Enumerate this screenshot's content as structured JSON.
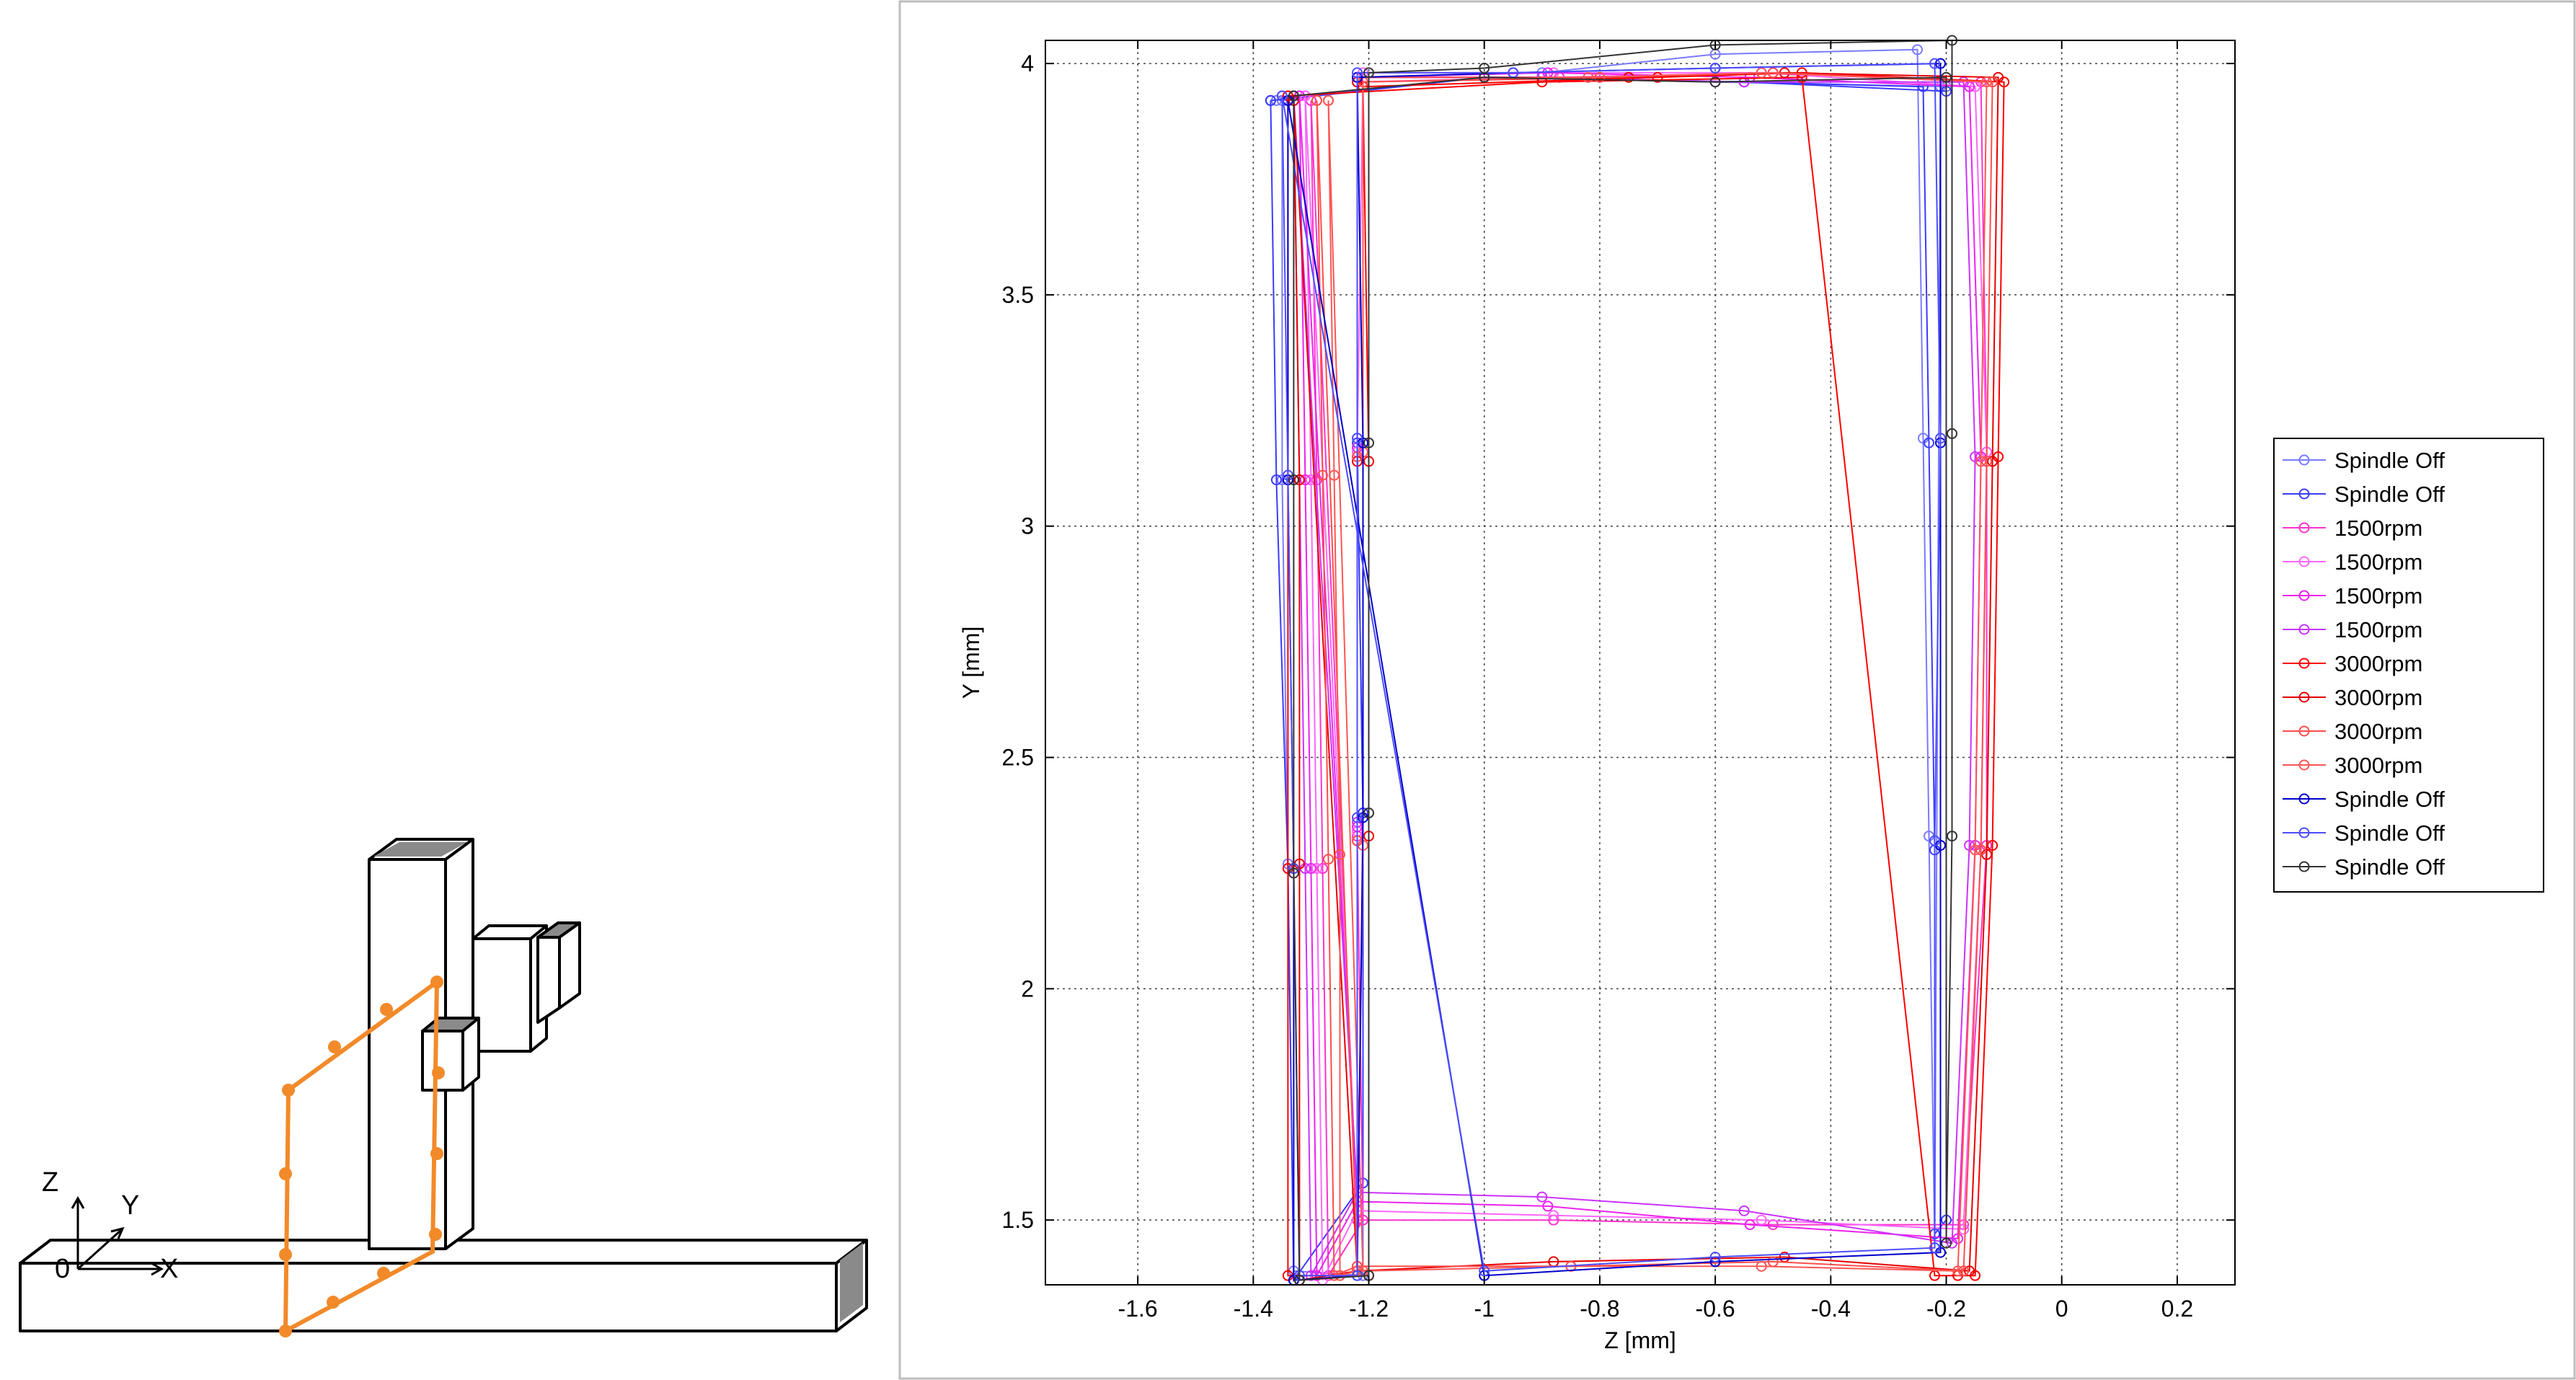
{
  "sketch": {
    "axis_z": "Z",
    "axis_y": "Y",
    "axis_x": "X",
    "origin": "0",
    "path_color": "#f28a2a"
  },
  "chart_data": {
    "type": "line",
    "title": "",
    "xlabel": "Z [mm]",
    "ylabel": "Y [mm]",
    "xlim": [
      -1.76,
      0.3
    ],
    "ylim": [
      1.36,
      4.05
    ],
    "xticks": [
      -1.6,
      -1.4,
      -1.2,
      -1,
      -0.8,
      -0.6,
      -0.4,
      -0.2,
      0,
      0.2
    ],
    "xtick_labels": [
      "-1.6",
      "-1.4",
      "-1.2",
      "-1",
      "-0.8",
      "-0.6",
      "-0.4",
      "-0.2",
      "0",
      "0.2"
    ],
    "yticks": [
      1.5,
      2,
      2.5,
      3,
      3.5,
      4
    ],
    "ytick_labels": [
      "1.5",
      "2",
      "2.5",
      "3",
      "3.5",
      "4"
    ],
    "grid": true,
    "legend_position": "right",
    "series": [
      {
        "name": "Spindle Off",
        "color": "#7a7aff",
        "x": [
          -1.35,
          -1.35,
          -1.34,
          -1.33,
          -1.21,
          -1.21,
          -1.22,
          -1.22,
          -0.9,
          -0.6,
          -0.25,
          -0.24,
          -0.23,
          -0.22,
          -0.21,
          -0.2,
          -0.6,
          -1.0,
          -1.36
        ],
        "y": [
          3.92,
          3.1,
          2.27,
          1.39,
          1.38,
          2.38,
          3.19,
          3.97,
          3.98,
          4.02,
          4.03,
          3.19,
          2.33,
          1.44,
          3.95,
          3.95,
          3.96,
          3.97,
          3.92
        ]
      },
      {
        "name": "Spindle Off",
        "color": "#3b3bff",
        "x": [
          -1.37,
          -1.36,
          -1.34,
          -1.33,
          -1.21,
          -1.21,
          -1.22,
          -1.22,
          -0.9,
          -0.55,
          -0.24,
          -0.23,
          -0.22,
          -0.22,
          -0.2,
          -0.2,
          -0.55,
          -1.0,
          -1.37
        ],
        "y": [
          3.92,
          3.1,
          2.26,
          1.37,
          1.58,
          2.38,
          3.18,
          3.97,
          3.97,
          3.96,
          3.95,
          3.18,
          2.3,
          1.47,
          1.5,
          3.94,
          3.96,
          3.97,
          3.92
        ]
      },
      {
        "name": "1500rpm",
        "color": "#ff33cc",
        "x": [
          -1.3,
          -1.29,
          -1.28,
          -1.27,
          -1.21,
          -1.22,
          -1.22,
          -1.22,
          -0.87,
          -0.5,
          -0.14,
          -0.13,
          -0.13,
          -0.17,
          -0.5,
          -0.88,
          -1.22,
          -1.3
        ],
        "y": [
          3.92,
          3.1,
          2.26,
          1.38,
          1.5,
          2.33,
          3.15,
          3.96,
          3.97,
          3.98,
          3.96,
          3.16,
          2.31,
          1.49,
          1.49,
          1.5,
          1.5,
          3.92
        ]
      },
      {
        "name": "1500rpm",
        "color": "#ff66ff",
        "x": [
          -1.31,
          -1.3,
          -1.29,
          -1.28,
          -1.22,
          -1.22,
          -1.22,
          -1.21,
          -0.88,
          -0.52,
          -0.15,
          -0.13,
          -0.14,
          -0.17,
          -0.52,
          -0.88,
          -1.22,
          -1.31
        ],
        "y": [
          3.93,
          3.1,
          2.26,
          1.37,
          1.52,
          2.34,
          3.16,
          3.98,
          3.98,
          3.98,
          3.95,
          3.16,
          2.3,
          1.48,
          1.5,
          1.51,
          1.52,
          3.93
        ]
      },
      {
        "name": "1500rpm",
        "color": "#ee22ee",
        "x": [
          -1.32,
          -1.31,
          -1.3,
          -1.29,
          -1.22,
          -1.22,
          -1.22,
          -1.22,
          -0.89,
          -0.54,
          -0.16,
          -0.14,
          -0.15,
          -0.18,
          -0.54,
          -0.89,
          -1.22,
          -1.32
        ],
        "y": [
          3.93,
          3.1,
          2.26,
          1.38,
          1.54,
          2.35,
          3.17,
          3.97,
          3.98,
          3.97,
          3.95,
          3.15,
          2.31,
          1.46,
          1.49,
          1.53,
          1.54,
          3.93
        ]
      },
      {
        "name": "1500rpm",
        "color": "#cc33ff",
        "x": [
          -1.33,
          -1.32,
          -1.31,
          -1.3,
          -1.22,
          -1.22,
          -1.22,
          -1.22,
          -0.9,
          -0.55,
          -0.17,
          -0.15,
          -0.16,
          -0.19,
          -0.55,
          -0.9,
          -1.22,
          -1.33
        ],
        "y": [
          3.93,
          3.1,
          2.26,
          1.38,
          1.56,
          2.36,
          3.17,
          3.97,
          3.97,
          3.96,
          3.96,
          3.15,
          2.31,
          1.45,
          1.52,
          1.55,
          1.56,
          3.93
        ]
      },
      {
        "name": "3000rpm",
        "color": "#ff0000",
        "x": [
          -1.34,
          -1.34,
          -1.34,
          -1.34,
          -1.2,
          -1.2,
          -1.2,
          -1.21,
          -0.7,
          -0.45,
          -0.1,
          -0.11,
          -0.12,
          -0.15,
          -0.18,
          -0.22,
          -0.45,
          -0.9,
          -1.34
        ],
        "y": [
          3.93,
          3.1,
          2.26,
          1.38,
          1.38,
          2.33,
          3.14,
          3.95,
          3.97,
          3.98,
          3.96,
          3.15,
          2.31,
          1.38,
          1.38,
          1.38,
          3.97,
          3.96,
          3.93
        ]
      },
      {
        "name": "3000rpm",
        "color": "#e60000",
        "x": [
          -1.33,
          -1.32,
          -1.32,
          -1.32,
          -1.22,
          -1.22,
          -1.22,
          -1.22,
          -0.75,
          -0.48,
          -0.11,
          -0.12,
          -0.13,
          -0.16,
          -0.48,
          -0.88,
          -1.22,
          -1.33
        ],
        "y": [
          3.92,
          3.1,
          2.27,
          1.37,
          1.39,
          2.32,
          3.14,
          3.96,
          3.97,
          3.98,
          3.97,
          3.14,
          2.29,
          1.39,
          1.42,
          1.41,
          1.39,
          3.92
        ]
      },
      {
        "name": "3000rpm",
        "color": "#ff4d4d",
        "x": [
          -1.29,
          -1.28,
          -1.27,
          -1.26,
          -1.22,
          -1.22,
          -1.22,
          -1.22,
          -0.8,
          -0.5,
          -0.12,
          -0.13,
          -0.14,
          -0.17,
          -0.5,
          -0.85,
          -1.22,
          -1.29
        ],
        "y": [
          3.92,
          3.11,
          2.28,
          1.38,
          1.4,
          2.32,
          3.15,
          3.97,
          3.97,
          3.98,
          3.96,
          3.14,
          2.3,
          1.39,
          1.41,
          1.4,
          1.4,
          3.92
        ]
      },
      {
        "name": "3000rpm",
        "color": "#ff5555",
        "x": [
          -1.27,
          -1.26,
          -1.25,
          -1.25,
          -1.22,
          -1.21,
          -1.21,
          -1.21,
          -0.82,
          -0.52,
          -0.13,
          -0.14,
          -0.15,
          -0.18,
          -0.52,
          -0.85,
          -1.21,
          -1.27
        ],
        "y": [
          3.92,
          3.11,
          2.29,
          1.38,
          1.39,
          2.31,
          3.16,
          3.96,
          3.97,
          3.98,
          3.96,
          3.14,
          2.3,
          1.39,
          1.4,
          1.4,
          1.39,
          3.92
        ]
      },
      {
        "name": "Spindle Off",
        "color": "#0000cc",
        "x": [
          -1.34,
          -1.34,
          -1.33,
          -1.33,
          -1.22,
          -1.21,
          -1.21,
          -1.22,
          -0.95,
          -0.6,
          -0.21,
          -0.21,
          -0.21,
          -0.21,
          -0.6,
          -1.0,
          -1.34
        ],
        "y": [
          3.92,
          3.1,
          2.26,
          1.37,
          1.38,
          2.37,
          3.18,
          3.97,
          3.98,
          3.99,
          4.0,
          3.18,
          2.31,
          1.43,
          1.41,
          1.38,
          3.92
        ]
      },
      {
        "name": "Spindle Off",
        "color": "#4d4dff",
        "x": [
          -1.35,
          -1.34,
          -1.33,
          -1.32,
          -1.22,
          -1.22,
          -1.22,
          -1.22,
          -0.95,
          -0.6,
          -0.22,
          -0.21,
          -0.22,
          -0.22,
          -0.6,
          -1.0,
          -1.35
        ],
        "y": [
          3.93,
          3.11,
          2.26,
          1.38,
          1.38,
          2.37,
          3.19,
          3.98,
          3.98,
          3.99,
          4.0,
          3.19,
          2.32,
          1.44,
          1.42,
          1.39,
          3.93
        ]
      },
      {
        "name": "Spindle Off",
        "color": "#333333",
        "x": [
          -1.33,
          -1.33,
          -1.33,
          -1.32,
          -1.2,
          -1.2,
          -1.2,
          -1.2,
          -1.0,
          -0.6,
          -0.19,
          -0.19,
          -0.19,
          -0.2,
          -0.2,
          -0.6,
          -1.0,
          -1.33
        ],
        "y": [
          3.93,
          3.1,
          2.25,
          1.37,
          1.38,
          2.38,
          3.18,
          3.98,
          3.99,
          4.04,
          4.05,
          3.2,
          2.33,
          1.45,
          3.97,
          3.96,
          3.97,
          3.93
        ]
      }
    ]
  }
}
